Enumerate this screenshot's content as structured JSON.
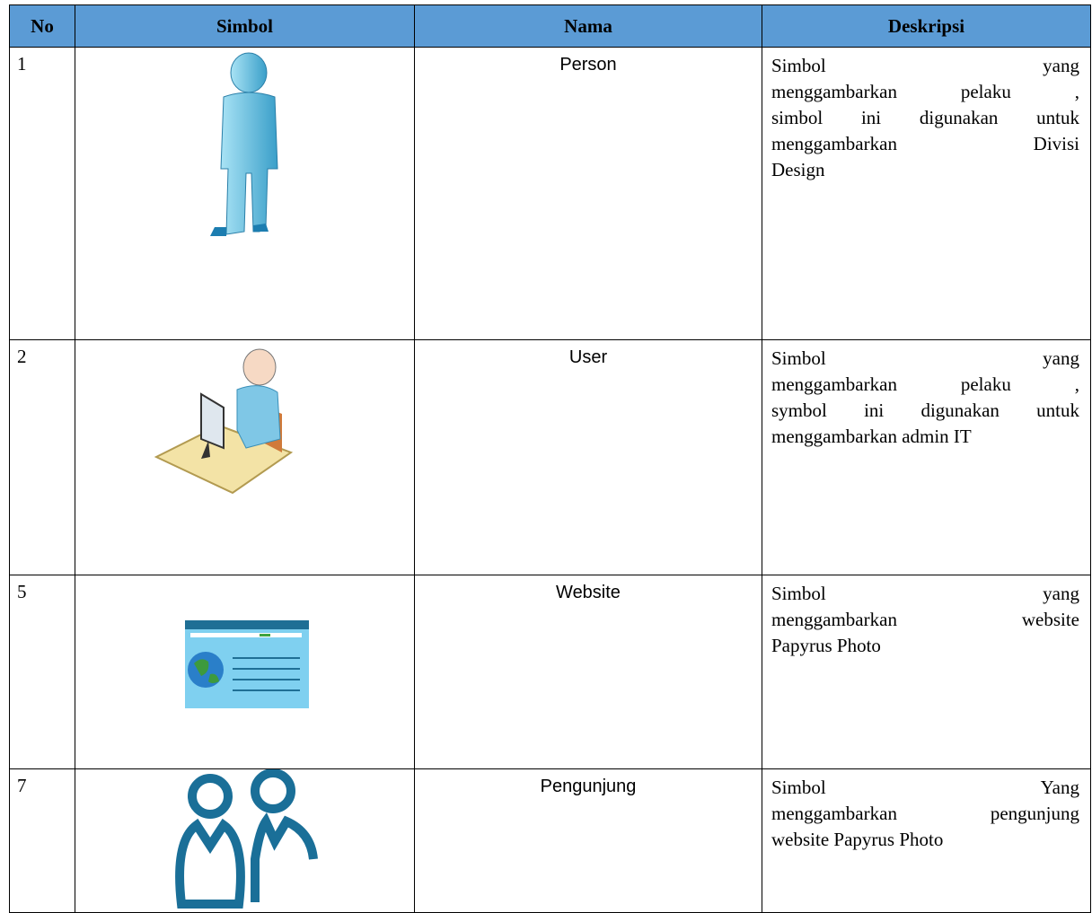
{
  "table": {
    "headers": [
      "No",
      "Simbol",
      "Nama",
      "Deskripsi"
    ],
    "rows": [
      {
        "no": "1",
        "nama": "Person",
        "deskripsi": [
          "Simbol yang",
          "menggambarkan pelaku ,",
          "simbol ini digunakan untuk",
          "menggambarkan Divisi",
          "Design"
        ]
      },
      {
        "no": "2",
        "nama": "User",
        "deskripsi": [
          "Simbol yang",
          "menggambarkan pelaku ,",
          "symbol ini digunakan untuk",
          "menggambarkan admin IT"
        ]
      },
      {
        "no": "5",
        "nama": "Website",
        "deskripsi": [
          "Simbol yang",
          "menggambarkan website",
          "Papyrus Photo"
        ]
      },
      {
        "no": "7",
        "nama": "Pengunjung",
        "deskripsi": [
          "Simbol Yang",
          "menggambarkan pengunjung",
          "website Papyrus Photo"
        ]
      }
    ]
  }
}
